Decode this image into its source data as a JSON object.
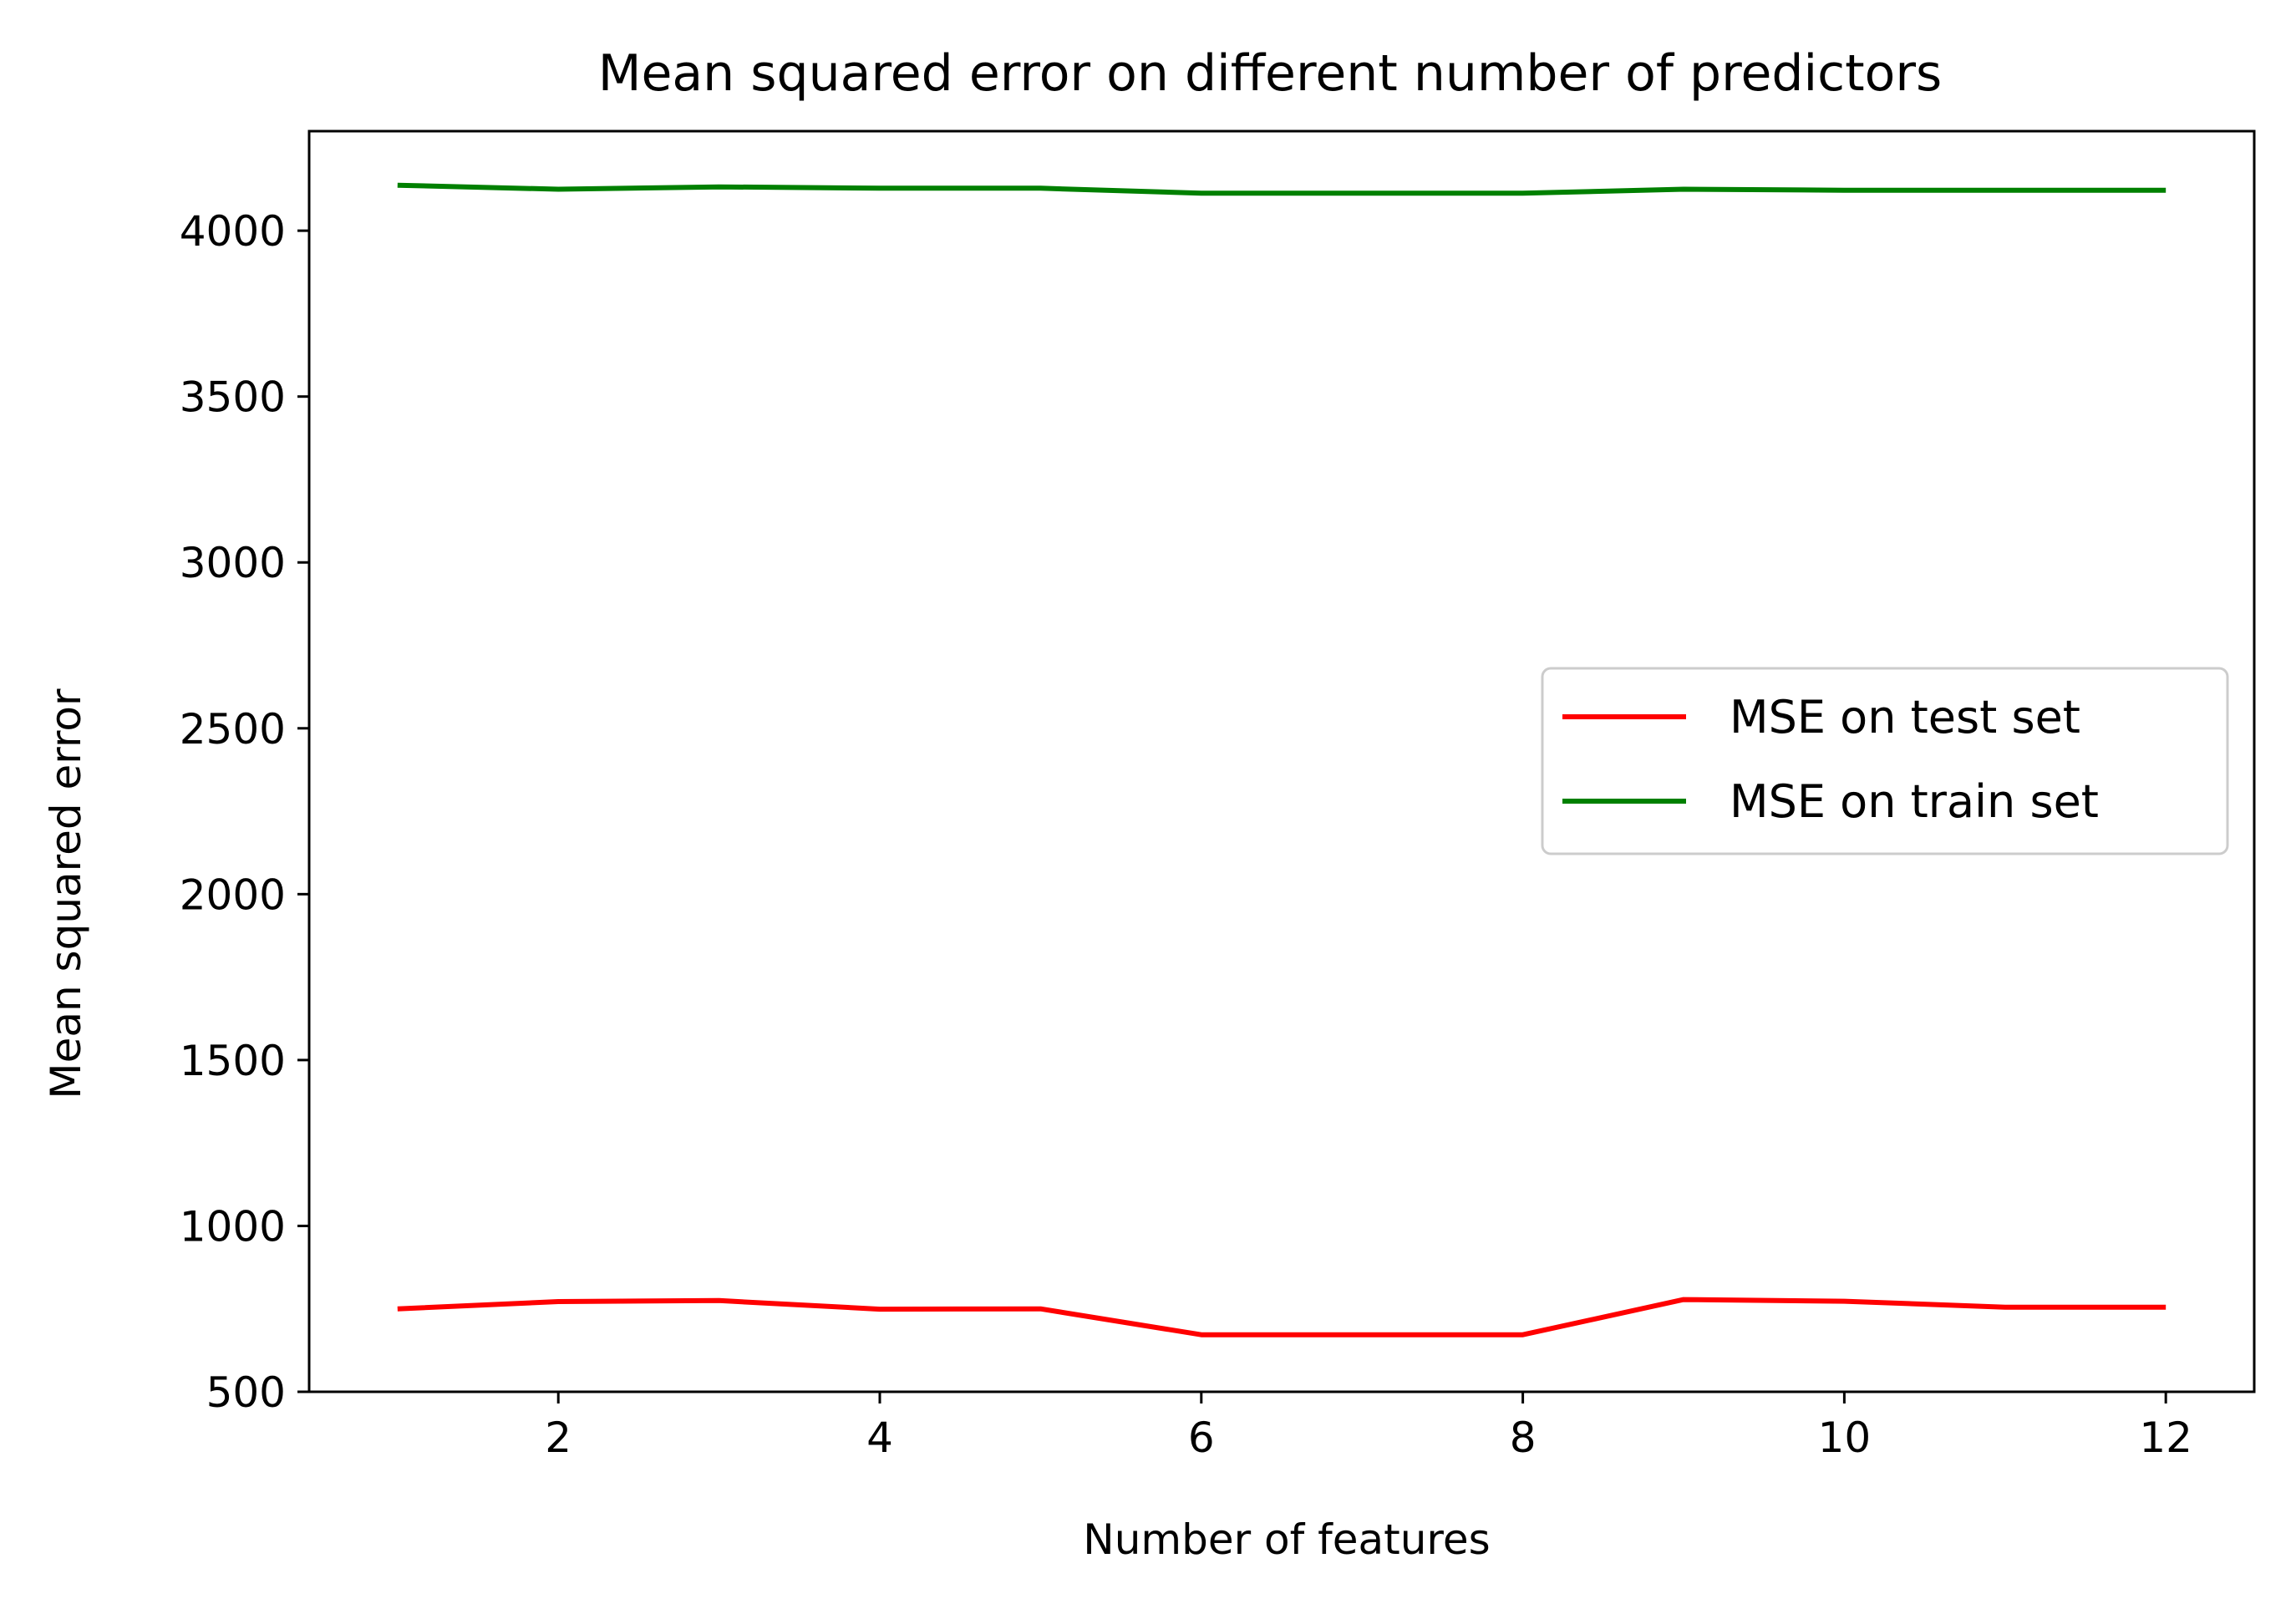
{
  "chart_data": {
    "type": "line",
    "title": "Mean squared error on different number of predictors",
    "xlabel": "Number of features",
    "ylabel": "Mean squared error",
    "xlim": [
      0.45,
      12.55
    ],
    "ylim": [
      500,
      4300
    ],
    "xticks": [
      2,
      4,
      6,
      8,
      10,
      12
    ],
    "yticks": [
      500,
      1000,
      1500,
      2000,
      2500,
      3000,
      3500,
      4000
    ],
    "grid": false,
    "legend_position": "center-right",
    "x": [
      1,
      2,
      3,
      4,
      5,
      6,
      7,
      8,
      9,
      10,
      11,
      12
    ],
    "series": [
      {
        "name": "MSE on test set",
        "color": "#ff0000",
        "values": [
          750,
          772,
          775,
          749,
          750,
          672,
          672,
          672,
          778,
          773,
          755,
          755
        ]
      },
      {
        "name": "MSE on train set",
        "color": "#008000",
        "values": [
          4137,
          4125,
          4132,
          4128,
          4128,
          4113,
          4113,
          4113,
          4125,
          4122,
          4122,
          4122
        ]
      }
    ]
  }
}
